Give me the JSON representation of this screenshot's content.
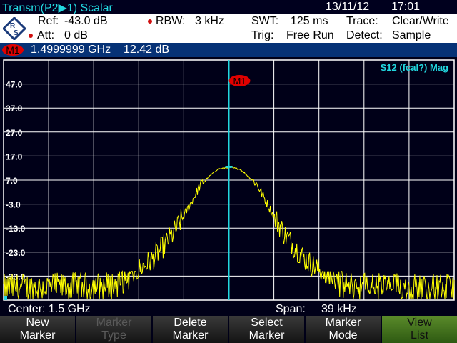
{
  "title": "Transm(P2▶1) Scalar",
  "date": "13/11/12",
  "time": "17:01",
  "info": {
    "ref_label": "Ref:",
    "ref": "-43.0 dB",
    "att_label": "Att:",
    "att": "0 dB",
    "rbw_label": "RBW:",
    "rbw": "3 kHz",
    "swt_label": "SWT:",
    "swt": "125 ms",
    "trig_label": "Trig:",
    "trig": "Free Run",
    "trace_label": "Trace:",
    "trace": "Clear/Write",
    "detect_label": "Detect:",
    "detect": "Sample"
  },
  "marker": {
    "name": "M1",
    "freq": "1.4999999 GHz",
    "level": "12.42 dB"
  },
  "trace_label": "S12 (fcal?) Mag",
  "bottom": {
    "center": "Center: 1.5 GHz",
    "span_label": "Span:",
    "span": "39 kHz"
  },
  "softkeys": [
    {
      "l1": "New",
      "l2": "Marker",
      "state": "normal"
    },
    {
      "l1": "Marker",
      "l2": "Type",
      "state": "disabled"
    },
    {
      "l1": "Delete",
      "l2": "Marker",
      "state": "normal"
    },
    {
      "l1": "Select",
      "l2": "Marker",
      "state": "normal"
    },
    {
      "l1": "Marker",
      "l2": "Mode",
      "state": "normal"
    },
    {
      "l1": "View",
      "l2": "List",
      "state": "active"
    }
  ],
  "colors": {
    "trace": "#ffff00",
    "marker_line": "#22d8e0",
    "grid": "#ffffff",
    "marker": "#e00000"
  },
  "chart_data": {
    "type": "line",
    "xlabel": "",
    "ylabel": "",
    "xlim_khz_offset": [
      -19.5,
      19.5
    ],
    "ylim": [
      -43,
      57
    ],
    "ytick_labels": [
      "47.0",
      "37.0",
      "27.0",
      "17.0",
      "7.0",
      "-3.0",
      "-13.0",
      "-23.0",
      "-33.0"
    ],
    "grid": true,
    "envelope": {
      "x_khz_offset": [
        -19.5,
        -10,
        -8,
        -6.6,
        -4.9,
        -3.9,
        -2.4,
        -1,
        0,
        1,
        2.4,
        3.9,
        4.9,
        6.6,
        8,
        10,
        19.5
      ],
      "y": [
        -38,
        -37,
        -31,
        -26,
        -16,
        -8,
        5.5,
        11.5,
        12.4,
        11.5,
        5.5,
        -8,
        -16,
        -26,
        -31,
        -37,
        -38
      ]
    },
    "marker": {
      "x_khz_offset": 0,
      "y": 12.42,
      "label": "M1"
    }
  }
}
